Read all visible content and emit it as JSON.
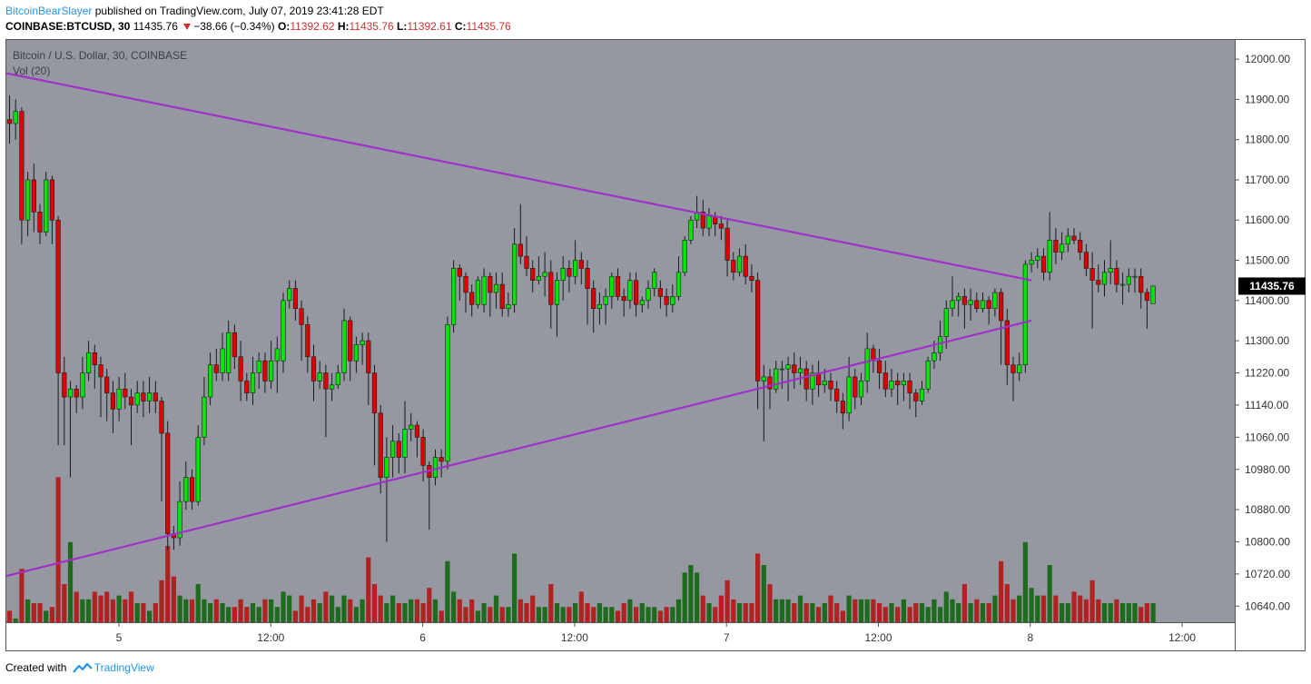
{
  "header": {
    "author": "BitcoinBearSlayer",
    "published_text": "published on TradingView.com, July 07, 2019 23:41:28 EDT",
    "symbol": "COINBASE:BTCUSD, 30",
    "last_price": "11435.76",
    "change": "−38.66 (−0.34%)",
    "open_label": "O:",
    "open_value": "11392.62",
    "high_label": "H:",
    "high_value": "11435.76",
    "low_label": "L:",
    "low_value": "11392.61",
    "close_label": "C:",
    "close_value": "11435.76"
  },
  "footer": {
    "created_with": "Created with",
    "brand": "TradingView"
  },
  "colors": {
    "plot_bg": "#9598a1",
    "bull": "#00e600",
    "bear": "#e00000",
    "vol_bull": "#1e6b1e",
    "vol_bear": "#b22222",
    "trendline": "#a030c8",
    "price_tag_bg": "#000000",
    "price_tag_text": "#ffffff"
  },
  "chart_data": {
    "type": "candlestick",
    "title": "Bitcoin / U.S. Dollar, 30, COINBASE",
    "volume_label": "Vol (20)",
    "current_price_label": "11435.76",
    "y_tick_labels": [
      "12000.00",
      "11900.00",
      "11800.00",
      "11700.00",
      "11600.00",
      "11500.00",
      "11400.00",
      "11300.00",
      "11220.00",
      "11140.00",
      "11060.00",
      "10980.00",
      "10880.00",
      "10800.00",
      "10720.00",
      "10640.00"
    ],
    "x_tick_labels": [
      "5",
      "12:00",
      "6",
      "12:00",
      "7",
      "12:00",
      "8",
      "12:00"
    ],
    "trendlines": [
      {
        "name": "upper",
        "start": {
          "bar": -0.5,
          "price": 11965
        },
        "end": {
          "bar": 168,
          "price": 11450
        }
      },
      {
        "name": "lower",
        "start": {
          "bar": -0.5,
          "price": 10715
        },
        "end": {
          "bar": 168,
          "price": 11350
        }
      }
    ],
    "candles": [
      [
        11850,
        11840,
        11910,
        11790,
        0.3
      ],
      [
        11840,
        11870,
        11900,
        11800,
        0.1
      ],
      [
        11870,
        11600,
        11880,
        11540,
        1.4
      ],
      [
        11600,
        11700,
        11720,
        11560,
        0.6
      ],
      [
        11700,
        11620,
        11740,
        11570,
        0.5
      ],
      [
        11620,
        11570,
        11640,
        11540,
        0.5
      ],
      [
        11570,
        11700,
        11720,
        11560,
        0.3
      ],
      [
        11700,
        11600,
        11710,
        11540,
        0.4
      ],
      [
        11600,
        11220,
        11610,
        11040,
        3.8
      ],
      [
        11220,
        11160,
        11260,
        11040,
        1.0
      ],
      [
        11160,
        11180,
        11200,
        10960,
        2.1
      ],
      [
        11180,
        11160,
        11190,
        11120,
        0.8
      ],
      [
        11160,
        11220,
        11260,
        11130,
        0.6
      ],
      [
        11220,
        11270,
        11300,
        11200,
        0.6
      ],
      [
        11270,
        11240,
        11290,
        11180,
        0.8
      ],
      [
        11240,
        11210,
        11260,
        11110,
        0.7
      ],
      [
        11210,
        11170,
        11230,
        11100,
        0.8
      ],
      [
        11170,
        11130,
        11200,
        11070,
        0.6
      ],
      [
        11130,
        11180,
        11210,
        11100,
        0.7
      ],
      [
        11180,
        11160,
        11220,
        11130,
        0.6
      ],
      [
        11160,
        11140,
        11180,
        11040,
        0.8
      ],
      [
        11140,
        11170,
        11200,
        11120,
        0.5
      ],
      [
        11170,
        11150,
        11200,
        11110,
        0.5
      ],
      [
        11150,
        11170,
        11210,
        11120,
        0.3
      ],
      [
        11170,
        11150,
        11200,
        11120,
        0.5
      ],
      [
        11150,
        11070,
        11160,
        10900,
        1.1
      ],
      [
        11070,
        10820,
        11100,
        10780,
        2.0
      ],
      [
        10820,
        10810,
        10840,
        10780,
        1.2
      ],
      [
        10810,
        10900,
        10950,
        10790,
        0.7
      ],
      [
        10900,
        10960,
        11000,
        10880,
        0.6
      ],
      [
        10960,
        10900,
        10980,
        10880,
        0.6
      ],
      [
        10900,
        11060,
        11090,
        10890,
        1.0
      ],
      [
        11060,
        11160,
        11210,
        11040,
        0.6
      ],
      [
        11160,
        11240,
        11270,
        11140,
        0.5
      ],
      [
        11240,
        11220,
        11280,
        11200,
        0.6
      ],
      [
        11220,
        11280,
        11320,
        11200,
        0.5
      ],
      [
        11220,
        11320,
        11350,
        11200,
        0.4
      ],
      [
        11320,
        11260,
        11340,
        11230,
        0.4
      ],
      [
        11260,
        11200,
        11300,
        11150,
        0.6
      ],
      [
        11200,
        11170,
        11220,
        11150,
        0.4
      ],
      [
        11170,
        11220,
        11260,
        11140,
        0.5
      ],
      [
        11220,
        11250,
        11270,
        11180,
        0.4
      ],
      [
        11250,
        11200,
        11270,
        11170,
        0.6
      ],
      [
        11200,
        11250,
        11300,
        11180,
        0.6
      ],
      [
        11250,
        11280,
        11310,
        11170,
        0.4
      ],
      [
        11250,
        11400,
        11420,
        11220,
        0.8
      ],
      [
        11400,
        11430,
        11450,
        11380,
        0.7
      ],
      [
        11430,
        11380,
        11450,
        11350,
        0.3
      ],
      [
        11380,
        11340,
        11400,
        11250,
        0.7
      ],
      [
        11340,
        11260,
        11360,
        11220,
        0.4
      ],
      [
        11260,
        11200,
        11290,
        11150,
        0.6
      ],
      [
        11200,
        11220,
        11250,
        11180,
        0.5
      ],
      [
        11220,
        11180,
        11240,
        11060,
        0.8
      ],
      [
        11180,
        11190,
        11220,
        11150,
        0.7
      ],
      [
        11190,
        11220,
        11240,
        11180,
        0.4
      ],
      [
        11220,
        11350,
        11380,
        11200,
        0.7
      ],
      [
        11350,
        11250,
        11360,
        11200,
        0.6
      ],
      [
        11250,
        11290,
        11310,
        11220,
        0.4
      ],
      [
        11290,
        11300,
        11320,
        11240,
        0.6
      ],
      [
        11300,
        11220,
        11320,
        11140,
        1.7
      ],
      [
        11220,
        11120,
        11240,
        10990,
        1.0
      ],
      [
        11120,
        10960,
        11140,
        10920,
        0.7
      ],
      [
        10960,
        11010,
        11060,
        10800,
        0.5
      ],
      [
        11010,
        11050,
        11090,
        10960,
        0.7
      ],
      [
        11050,
        11010,
        11070,
        10970,
        0.5
      ],
      [
        11010,
        11080,
        11150,
        10970,
        0.5
      ],
      [
        11080,
        11090,
        11120,
        11050,
        0.6
      ],
      [
        11090,
        11060,
        11100,
        11010,
        0.6
      ],
      [
        11060,
        10990,
        11080,
        10950,
        0.5
      ],
      [
        10990,
        10960,
        11000,
        10830,
        0.9
      ],
      [
        10960,
        11010,
        11030,
        10940,
        0.6
      ],
      [
        11010,
        11000,
        11030,
        10960,
        0.3
      ],
      [
        11000,
        11340,
        11360,
        10980,
        1.6
      ],
      [
        11340,
        11480,
        11500,
        11320,
        0.8
      ],
      [
        11480,
        11460,
        11490,
        11400,
        0.6
      ],
      [
        11460,
        11420,
        11470,
        11370,
        0.4
      ],
      [
        11420,
        11390,
        11440,
        11360,
        0.6
      ],
      [
        11390,
        11450,
        11460,
        11380,
        0.3
      ],
      [
        11390,
        11460,
        11480,
        11370,
        0.5
      ],
      [
        11460,
        11420,
        11470,
        11360,
        0.4
      ],
      [
        11420,
        11440,
        11470,
        11380,
        0.7
      ],
      [
        11440,
        11380,
        11470,
        11360,
        0.4
      ],
      [
        11380,
        11390,
        11420,
        11360,
        0.4
      ],
      [
        11390,
        11540,
        11580,
        11370,
        1.8
      ],
      [
        11540,
        11510,
        11640,
        11490,
        0.6
      ],
      [
        11510,
        11480,
        11560,
        11460,
        0.5
      ],
      [
        11480,
        11450,
        11500,
        11420,
        0.7
      ],
      [
        11450,
        11460,
        11510,
        11440,
        0.4
      ],
      [
        11460,
        11470,
        11520,
        11410,
        0.4
      ],
      [
        11470,
        11390,
        11500,
        11330,
        1.0
      ],
      [
        11390,
        11450,
        11470,
        11310,
        0.5
      ],
      [
        11450,
        11480,
        11510,
        11400,
        0.4
      ],
      [
        11480,
        11460,
        11500,
        11420,
        0.4
      ],
      [
        11460,
        11500,
        11550,
        11440,
        0.5
      ],
      [
        11500,
        11480,
        11520,
        11440,
        0.8
      ],
      [
        11480,
        11430,
        11500,
        11340,
        0.5
      ],
      [
        11430,
        11380,
        11450,
        11320,
        0.4
      ],
      [
        11380,
        11390,
        11420,
        11340,
        0.5
      ],
      [
        11390,
        11410,
        11430,
        11340,
        0.4
      ],
      [
        11410,
        11460,
        11470,
        11380,
        0.4
      ],
      [
        11460,
        11410,
        11480,
        11400,
        0.3
      ],
      [
        11410,
        11400,
        11430,
        11360,
        0.5
      ],
      [
        11400,
        11450,
        11470,
        11380,
        0.6
      ],
      [
        11450,
        11390,
        11470,
        11360,
        0.4
      ],
      [
        11390,
        11400,
        11410,
        11370,
        0.5
      ],
      [
        11400,
        11430,
        11450,
        11380,
        0.4
      ],
      [
        11430,
        11470,
        11480,
        11410,
        0.4
      ],
      [
        11430,
        11410,
        11450,
        11380,
        0.3
      ],
      [
        11410,
        11390,
        11430,
        11360,
        0.4
      ],
      [
        11390,
        11410,
        11440,
        11370,
        0.4
      ],
      [
        11410,
        11470,
        11510,
        11400,
        0.6
      ],
      [
        11470,
        11550,
        11560,
        11460,
        1.3
      ],
      [
        11550,
        11600,
        11610,
        11540,
        1.5
      ],
      [
        11600,
        11620,
        11660,
        11580,
        1.3
      ],
      [
        11620,
        11580,
        11650,
        11560,
        0.7
      ],
      [
        11580,
        11610,
        11630,
        11560,
        0.5
      ],
      [
        11610,
        11590,
        11620,
        11560,
        0.4
      ],
      [
        11590,
        11580,
        11610,
        11550,
        0.7
      ],
      [
        11580,
        11500,
        11600,
        11460,
        1.1
      ],
      [
        11500,
        11470,
        11520,
        11450,
        0.6
      ],
      [
        11470,
        11510,
        11530,
        11460,
        0.5
      ],
      [
        11510,
        11460,
        11540,
        11440,
        0.5
      ],
      [
        11460,
        11450,
        11490,
        11420,
        0.5
      ],
      [
        11450,
        11200,
        11470,
        11130,
        1.8
      ],
      [
        11200,
        11210,
        11240,
        11050,
        1.5
      ],
      [
        11210,
        11180,
        11230,
        11130,
        1.0
      ],
      [
        11180,
        11230,
        11250,
        11170,
        0.6
      ],
      [
        11230,
        11230,
        11250,
        11180,
        0.6
      ],
      [
        11230,
        11240,
        11260,
        11150,
        0.6
      ],
      [
        11240,
        11220,
        11270,
        11180,
        0.5
      ],
      [
        11220,
        11230,
        11260,
        11190,
        0.7
      ],
      [
        11230,
        11180,
        11250,
        11150,
        0.5
      ],
      [
        11180,
        11220,
        11240,
        11140,
        0.5
      ],
      [
        11220,
        11190,
        11250,
        11160,
        0.4
      ],
      [
        11190,
        11200,
        11230,
        11170,
        0.5
      ],
      [
        11200,
        11180,
        11220,
        11150,
        0.7
      ],
      [
        11180,
        11150,
        11200,
        11120,
        0.5
      ],
      [
        11150,
        11120,
        11170,
        11080,
        0.3
      ],
      [
        11120,
        11210,
        11260,
        11100,
        0.7
      ],
      [
        11210,
        11160,
        11230,
        11130,
        0.6
      ],
      [
        11160,
        11200,
        11220,
        11140,
        0.6
      ],
      [
        11200,
        11280,
        11320,
        11170,
        0.6
      ],
      [
        11280,
        11250,
        11290,
        11220,
        0.6
      ],
      [
        11250,
        11220,
        11280,
        11180,
        0.5
      ],
      [
        11220,
        11180,
        11250,
        11160,
        0.4
      ],
      [
        11180,
        11200,
        11230,
        11160,
        0.5
      ],
      [
        11200,
        11190,
        11220,
        11140,
        0.4
      ],
      [
        11190,
        11200,
        11220,
        11150,
        0.6
      ],
      [
        11200,
        11170,
        11220,
        11130,
        0.4
      ],
      [
        11170,
        11150,
        11180,
        11110,
        0.5
      ],
      [
        11150,
        11180,
        11200,
        11140,
        0.5
      ],
      [
        11180,
        11250,
        11260,
        11170,
        0.4
      ],
      [
        11250,
        11270,
        11300,
        11230,
        0.6
      ],
      [
        11270,
        11310,
        11350,
        11250,
        0.4
      ],
      [
        11310,
        11380,
        11400,
        11280,
        0.8
      ],
      [
        11380,
        11400,
        11460,
        11360,
        0.6
      ],
      [
        11400,
        11410,
        11420,
        11360,
        0.5
      ],
      [
        11410,
        11390,
        11430,
        11330,
        1.0
      ],
      [
        11390,
        11400,
        11430,
        11350,
        0.5
      ],
      [
        11400,
        11380,
        11420,
        11370,
        0.6
      ],
      [
        11380,
        11400,
        11420,
        11370,
        0.5
      ],
      [
        11400,
        11380,
        11410,
        11340,
        0.5
      ],
      [
        11380,
        11420,
        11430,
        11360,
        0.7
      ],
      [
        11420,
        11350,
        11430,
        11240,
        1.6
      ],
      [
        11350,
        11240,
        11380,
        11190,
        1.0
      ],
      [
        11240,
        11220,
        11260,
        11150,
        0.6
      ],
      [
        11220,
        11240,
        11270,
        11200,
        0.7
      ],
      [
        11240,
        11490,
        11500,
        11220,
        2.1
      ],
      [
        11490,
        11500,
        11520,
        11470,
        0.9
      ],
      [
        11500,
        11510,
        11530,
        11480,
        0.7
      ],
      [
        11510,
        11470,
        11530,
        11450,
        0.7
      ],
      [
        11470,
        11550,
        11620,
        11450,
        1.5
      ],
      [
        11550,
        11520,
        11580,
        11490,
        0.7
      ],
      [
        11520,
        11540,
        11570,
        11500,
        0.5
      ],
      [
        11540,
        11560,
        11580,
        11520,
        0.5
      ],
      [
        11560,
        11550,
        11580,
        11540,
        0.8
      ],
      [
        11550,
        11520,
        11570,
        11500,
        0.7
      ],
      [
        11520,
        11480,
        11540,
        11460,
        0.6
      ],
      [
        11480,
        11450,
        11520,
        11330,
        1.1
      ],
      [
        11450,
        11440,
        11490,
        11420,
        0.6
      ],
      [
        11440,
        11470,
        11500,
        11410,
        0.5
      ],
      [
        11470,
        11480,
        11550,
        11440,
        0.5
      ],
      [
        11480,
        11440,
        11500,
        11420,
        0.6
      ],
      [
        11440,
        11440,
        11470,
        11390,
        0.5
      ],
      [
        11440,
        11460,
        11480,
        11420,
        0.5
      ],
      [
        11460,
        11460,
        11480,
        11420,
        0.5
      ],
      [
        11460,
        11420,
        11480,
        11380,
        0.4
      ],
      [
        11420,
        11400,
        11430,
        11330,
        0.5
      ],
      [
        11392,
        11436,
        11436,
        11392,
        0.5
      ]
    ],
    "y_range": [
      10600,
      12050
    ],
    "grid": false
  }
}
